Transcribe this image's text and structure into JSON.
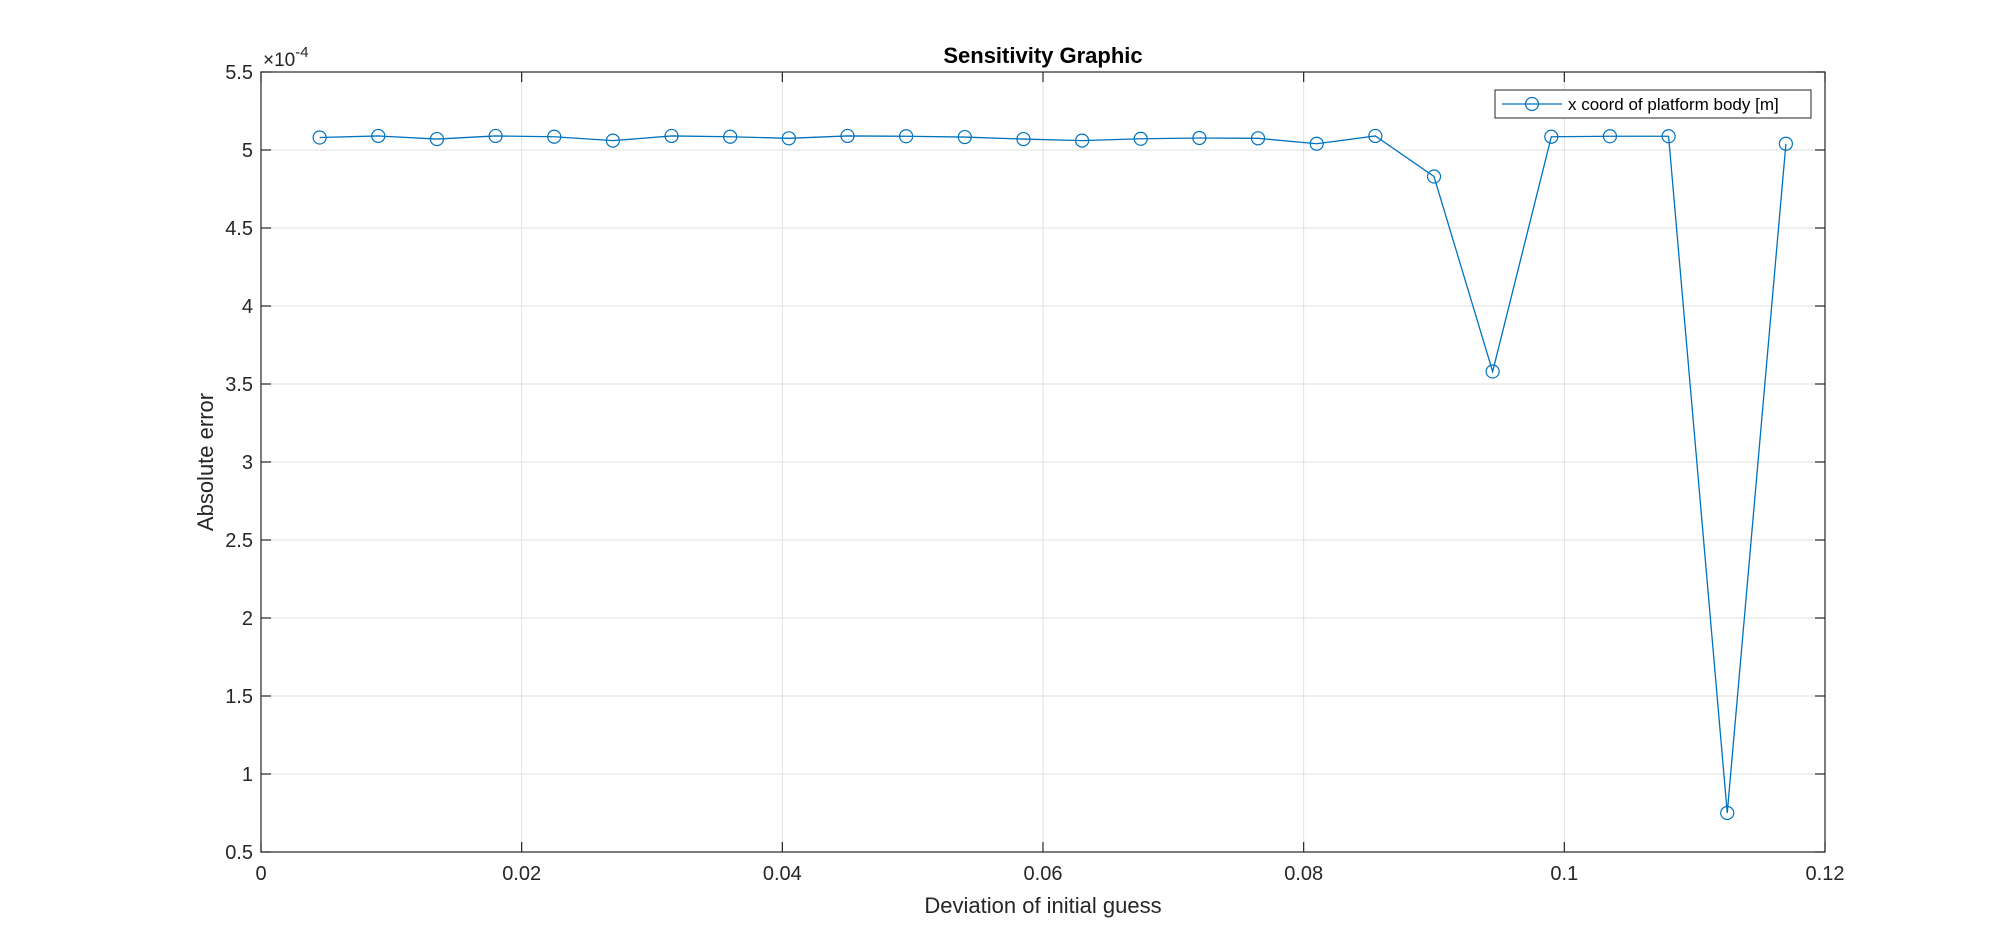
{
  "chart_data": {
    "type": "line",
    "title": "Sensitivity Graphic",
    "xlabel": "Deviation of initial guess",
    "ylabel": "Absolute error",
    "xlim": [
      0,
      0.12
    ],
    "ylim": [
      0.5,
      5.5
    ],
    "xticks": [
      0,
      0.02,
      0.04,
      0.06,
      0.08,
      0.1,
      0.12
    ],
    "xtick_labels": [
      "0",
      "0.02",
      "0.04",
      "0.06",
      "0.08",
      "0.1",
      "0.12"
    ],
    "yticks": [
      0.5,
      1,
      1.5,
      2,
      2.5,
      3,
      3.5,
      4,
      4.5,
      5,
      5.5
    ],
    "ytick_labels": [
      "0.5",
      "1",
      "1.5",
      "2",
      "2.5",
      "3",
      "3.5",
      "4",
      "4.5",
      "5",
      "5.5"
    ],
    "y_exponent_prefix": "×10",
    "y_exponent": "-4",
    "grid": true,
    "legend_position": "top-right",
    "color": "#0072BD",
    "marker": "circle",
    "series": [
      {
        "name": "x coord of platform body [m]",
        "x": [
          0.0045,
          0.009,
          0.0135,
          0.018,
          0.0225,
          0.027,
          0.0315,
          0.036,
          0.0405,
          0.045,
          0.0495,
          0.054,
          0.0585,
          0.063,
          0.0675,
          0.072,
          0.0765,
          0.081,
          0.0855,
          0.09,
          0.0945,
          0.099,
          0.1035,
          0.108,
          0.1125,
          0.117
        ],
        "y": [
          5.08,
          5.09,
          5.07,
          5.09,
          5.085,
          5.06,
          5.09,
          5.085,
          5.075,
          5.09,
          5.088,
          5.083,
          5.07,
          5.06,
          5.072,
          5.077,
          5.075,
          5.04,
          5.09,
          4.83,
          3.58,
          5.085,
          5.088,
          5.088,
          0.75,
          5.04
        ]
      }
    ]
  }
}
